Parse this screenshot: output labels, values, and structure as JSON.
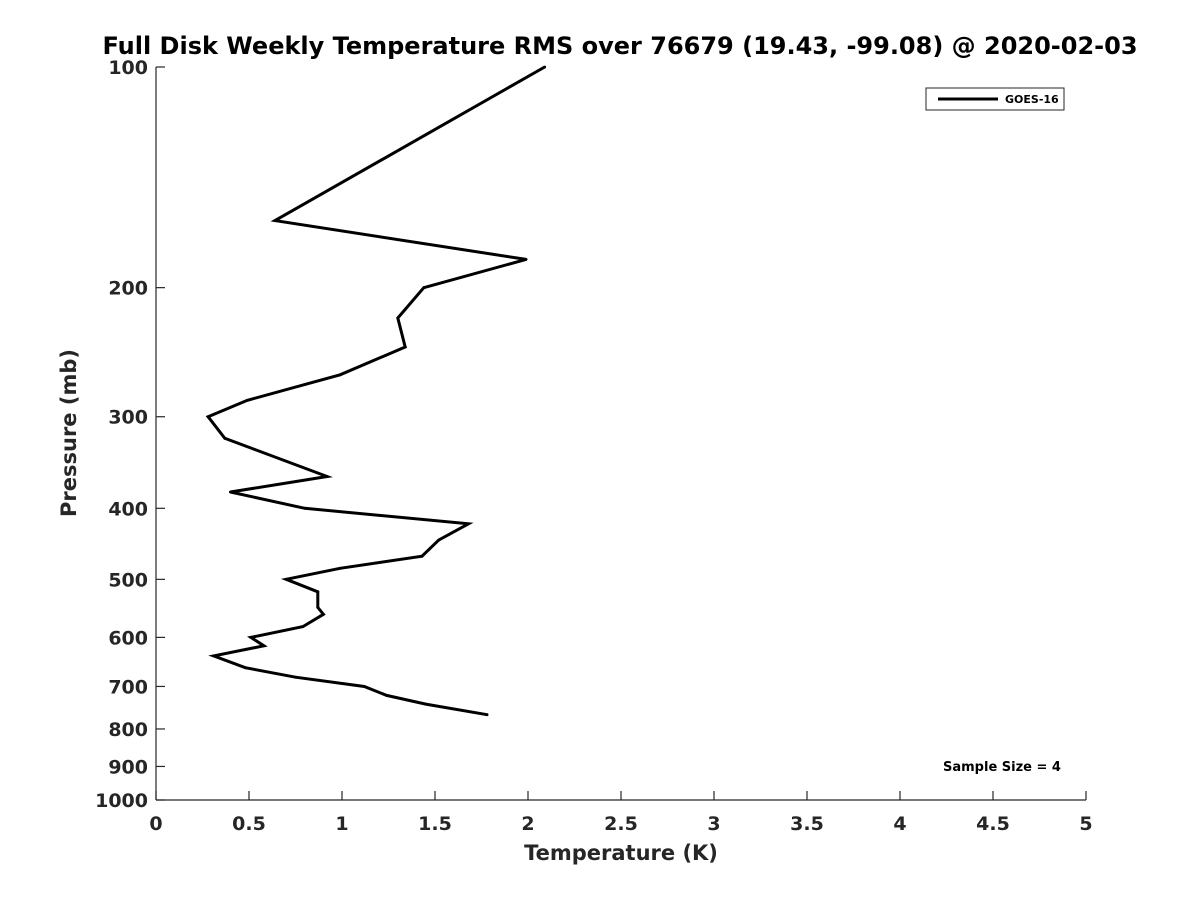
{
  "chart_data": {
    "type": "line",
    "title": "Full Disk Weekly Temperature RMS over 76679 (19.43, -99.08) @ 2020-02-03",
    "xlabel": "Temperature (K)",
    "ylabel": "Pressure (mb)",
    "xlim": [
      0,
      5
    ],
    "ylim": [
      100,
      1000
    ],
    "yscale": "log",
    "yreversed": true,
    "grid": false,
    "legend_position": "top-right",
    "x_ticks": [
      {
        "value": 0,
        "label": "0"
      },
      {
        "value": 0.5,
        "label": "0.5"
      },
      {
        "value": 1,
        "label": "1"
      },
      {
        "value": 1.5,
        "label": "1.5"
      },
      {
        "value": 2,
        "label": "2"
      },
      {
        "value": 2.5,
        "label": "2.5"
      },
      {
        "value": 3,
        "label": "3"
      },
      {
        "value": 3.5,
        "label": "3.5"
      },
      {
        "value": 4,
        "label": "4"
      },
      {
        "value": 4.5,
        "label": "4.5"
      },
      {
        "value": 5,
        "label": "5"
      }
    ],
    "y_ticks": [
      {
        "value": 100,
        "label": "100"
      },
      {
        "value": 200,
        "label": "200"
      },
      {
        "value": 300,
        "label": "300"
      },
      {
        "value": 400,
        "label": "400"
      },
      {
        "value": 500,
        "label": "500"
      },
      {
        "value": 600,
        "label": "600"
      },
      {
        "value": 700,
        "label": "700"
      },
      {
        "value": 800,
        "label": "800"
      },
      {
        "value": 900,
        "label": "900"
      },
      {
        "value": 1000,
        "label": "1000"
      }
    ],
    "series": [
      {
        "name": "GOES-16",
        "color": "#000000",
        "points": [
          {
            "x": 2.09,
            "y": 100
          },
          {
            "x": 0.64,
            "y": 162
          },
          {
            "x": 1.99,
            "y": 183
          },
          {
            "x": 1.44,
            "y": 200
          },
          {
            "x": 1.3,
            "y": 220
          },
          {
            "x": 1.34,
            "y": 241
          },
          {
            "x": 0.99,
            "y": 263
          },
          {
            "x": 0.49,
            "y": 285
          },
          {
            "x": 0.28,
            "y": 300
          },
          {
            "x": 0.37,
            "y": 321
          },
          {
            "x": 0.92,
            "y": 362
          },
          {
            "x": 0.4,
            "y": 380
          },
          {
            "x": 0.8,
            "y": 400
          },
          {
            "x": 1.68,
            "y": 420
          },
          {
            "x": 1.52,
            "y": 442
          },
          {
            "x": 1.43,
            "y": 465
          },
          {
            "x": 0.99,
            "y": 483
          },
          {
            "x": 0.7,
            "y": 500
          },
          {
            "x": 0.87,
            "y": 520
          },
          {
            "x": 0.87,
            "y": 546
          },
          {
            "x": 0.9,
            "y": 558
          },
          {
            "x": 0.79,
            "y": 580
          },
          {
            "x": 0.51,
            "y": 600
          },
          {
            "x": 0.58,
            "y": 616
          },
          {
            "x": 0.31,
            "y": 636
          },
          {
            "x": 0.48,
            "y": 660
          },
          {
            "x": 0.75,
            "y": 680
          },
          {
            "x": 1.12,
            "y": 700
          },
          {
            "x": 1.24,
            "y": 720
          },
          {
            "x": 1.45,
            "y": 740
          },
          {
            "x": 1.78,
            "y": 765
          }
        ]
      }
    ],
    "annotations": [
      {
        "text": "Sample Size = 4"
      }
    ]
  }
}
